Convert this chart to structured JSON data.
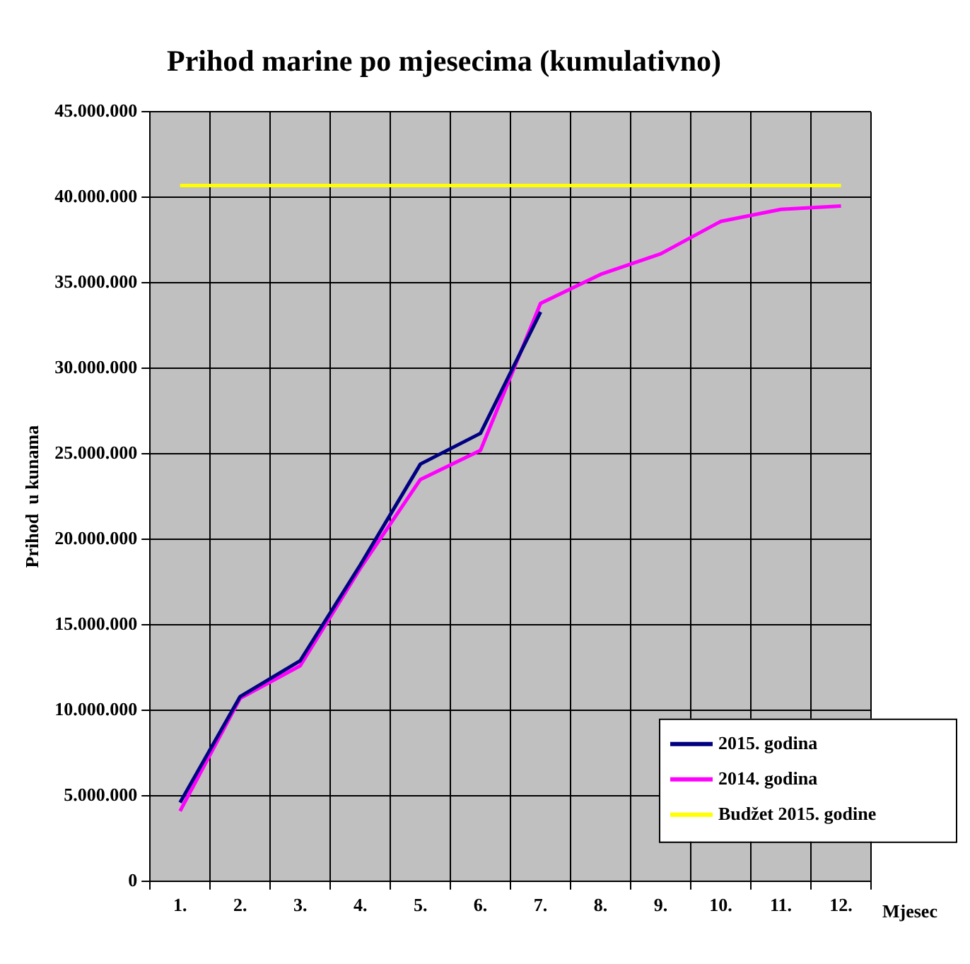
{
  "chart_data": {
    "type": "line",
    "title": "Prihod marine po mjesecima (kumulativno)",
    "xlabel": "Mjesec",
    "ylabel": "Prihod  u kunama",
    "categories": [
      "1.",
      "2.",
      "3.",
      "4.",
      "5.",
      "6.",
      "7.",
      "8.",
      "9.",
      "10.",
      "11.",
      "12."
    ],
    "series": [
      {
        "name": "2015. godina",
        "color": "#000080",
        "values": [
          4600000,
          10800000,
          12900000,
          18500000,
          24400000,
          26200000,
          33300000,
          null,
          null,
          null,
          null,
          null
        ]
      },
      {
        "name": "2014. godina",
        "color": "#ff00ff",
        "values": [
          4100000,
          10700000,
          12600000,
          18300000,
          23500000,
          25200000,
          33800000,
          35500000,
          36700000,
          38600000,
          39300000,
          39500000
        ]
      },
      {
        "name": "Budžet 2015. godine",
        "color": "#ffff00",
        "values": [
          40700000,
          40700000,
          40700000,
          40700000,
          40700000,
          40700000,
          40700000,
          40700000,
          40700000,
          40700000,
          40700000,
          40700000
        ]
      }
    ],
    "ylim": [
      0,
      45000000
    ],
    "yticks": [
      {
        "value": 0,
        "label": "0"
      },
      {
        "value": 5000000,
        "label": "5.000.000"
      },
      {
        "value": 10000000,
        "label": "10.000.000"
      },
      {
        "value": 15000000,
        "label": "15.000.000"
      },
      {
        "value": 20000000,
        "label": "20.000.000"
      },
      {
        "value": 25000000,
        "label": "25.000.000"
      },
      {
        "value": 30000000,
        "label": "30.000.000"
      },
      {
        "value": 35000000,
        "label": "35.000.000"
      },
      {
        "value": 40000000,
        "label": "40.000.000"
      },
      {
        "value": 45000000,
        "label": "45.000.000"
      }
    ],
    "grid": true,
    "legend": "bottom right",
    "marker": "none",
    "line_style": "solid"
  }
}
